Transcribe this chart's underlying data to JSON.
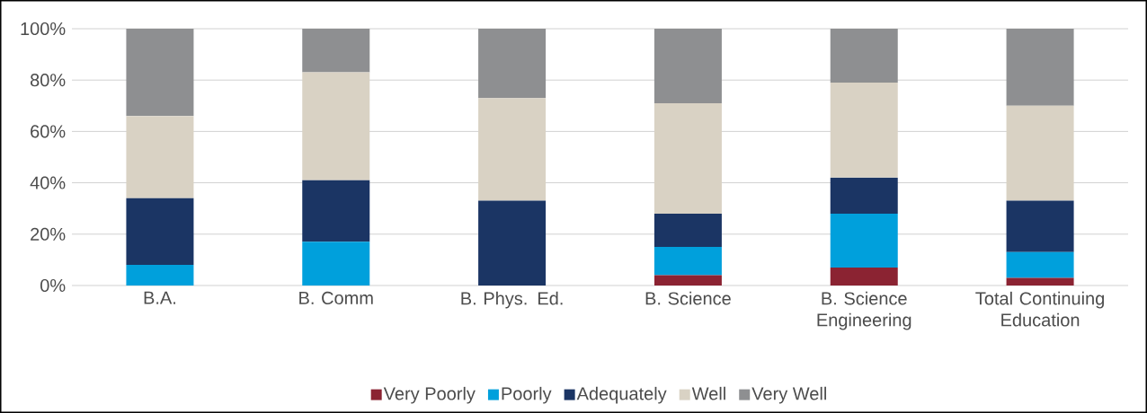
{
  "chart_data": {
    "type": "bar",
    "stacked": true,
    "categories": [
      "B.A.",
      "B. Comm",
      "B. Phys. Ed.",
      "B. Science",
      "B. Science Engineering",
      "Total Continuing Education"
    ],
    "series": [
      {
        "name": "Very Poorly",
        "color": "#8b2332",
        "values": [
          0,
          0,
          0,
          4,
          7,
          3
        ]
      },
      {
        "name": "Poorly",
        "color": "#00a0dc",
        "values": [
          8,
          17,
          0,
          11,
          21,
          10
        ]
      },
      {
        "name": "Adequately",
        "color": "#1b3564",
        "values": [
          26,
          24,
          33,
          13,
          14,
          20
        ]
      },
      {
        "name": "Well",
        "color": "#d9d2c4",
        "values": [
          32,
          42,
          40,
          43,
          37,
          37
        ]
      },
      {
        "name": "Very Well",
        "color": "#8e8f91",
        "values": [
          34,
          17,
          27,
          29,
          21,
          30
        ]
      }
    ],
    "ylim": [
      0,
      100
    ],
    "yticks": [
      {
        "value": 0,
        "label": "0%"
      },
      {
        "value": 20,
        "label": "20%"
      },
      {
        "value": 40,
        "label": "40%"
      },
      {
        "value": 60,
        "label": "60%"
      },
      {
        "value": 80,
        "label": "80%"
      },
      {
        "value": 100,
        "label": "100%"
      }
    ],
    "grid": "y",
    "legend": "bottom"
  }
}
